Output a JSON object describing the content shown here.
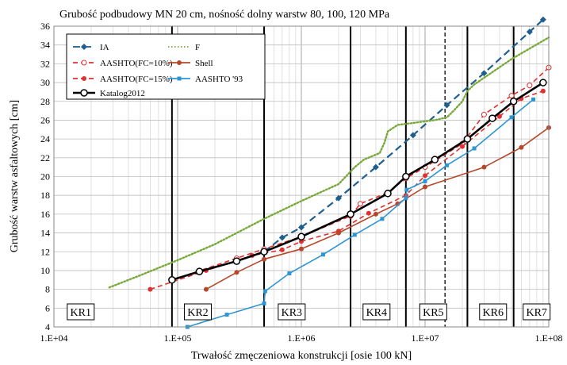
{
  "chart_data": {
    "type": "line",
    "title": "Grubość podbudowy MN 20 cm, nośność dolny warstw 80, 100, 120 MPa",
    "xlabel": "Trwałość zmęczeniowa konstrukcji [osie 100 kN]",
    "ylabel": "Grubość warstw asfaltowych [cm]",
    "x_scale": "log",
    "xlim": [
      10000,
      100000000
    ],
    "ylim": [
      4,
      36
    ],
    "x_ticks": [
      10000,
      100000,
      1000000,
      10000000,
      100000000
    ],
    "x_tick_labels": [
      "1.E+04",
      "1.E+05",
      "1.E+06",
      "1.E+07",
      "1.E+08"
    ],
    "y_ticks": [
      4,
      6,
      8,
      10,
      12,
      14,
      16,
      18,
      20,
      22,
      24,
      26,
      28,
      30,
      32,
      34,
      36
    ],
    "y_tick_labels": [
      "4",
      "6",
      "8",
      "10",
      "12",
      "14",
      "16",
      "18",
      "20",
      "22",
      "24",
      "26",
      "28",
      "30",
      "32",
      "34",
      "36"
    ],
    "grid": true,
    "legend_position": "top-left",
    "series": [
      {
        "name": "IA",
        "color": "#1F5F8F",
        "dash": "long-dash",
        "marker": "diamond",
        "points": [
          [
            500000,
            12
          ],
          [
            700000,
            13.5
          ],
          [
            1000000,
            14.6
          ],
          [
            2000000,
            17.7
          ],
          [
            4000000,
            21
          ],
          [
            8000000,
            24.4
          ],
          [
            15000000,
            27.6
          ],
          [
            30000000,
            31
          ],
          [
            70000000,
            35.4
          ],
          [
            90000000,
            36.7
          ]
        ]
      },
      {
        "name": "F",
        "color": "#77A83A",
        "dash": "dotted",
        "marker": "none",
        "points": [
          [
            28000,
            8.2
          ],
          [
            50000,
            9.5
          ],
          [
            100000,
            11.1
          ],
          [
            200000,
            12.8
          ],
          [
            500000,
            15.5
          ],
          [
            1000000,
            17.4
          ],
          [
            2000000,
            19.2
          ],
          [
            2700000,
            21
          ],
          [
            3200000,
            21.8
          ],
          [
            4300000,
            22.5
          ],
          [
            4700000,
            23.6
          ],
          [
            5000000,
            24.8
          ],
          [
            6000000,
            25.5
          ],
          [
            8000000,
            25.7
          ],
          [
            9000000,
            25.8
          ],
          [
            12000000,
            26
          ],
          [
            15000000,
            26.3
          ],
          [
            17000000,
            27
          ],
          [
            20000000,
            28
          ],
          [
            22000000,
            29.1
          ],
          [
            25000000,
            29.8
          ],
          [
            50000000,
            32.5
          ],
          [
            100000000,
            34.8
          ]
        ]
      },
      {
        "name": "AASHTO(FC=10%)",
        "color": "#E03030",
        "dash": "dashed",
        "marker": "open-circle",
        "points": [
          [
            90000,
            9
          ],
          [
            300000,
            11.3
          ],
          [
            500000,
            12.3
          ],
          [
            1000000,
            13.6
          ],
          [
            2500000,
            15.8
          ],
          [
            3000000,
            17.1
          ],
          [
            5000000,
            18.3
          ],
          [
            7000000,
            19.8
          ],
          [
            10000000,
            21
          ],
          [
            20000000,
            23.5
          ],
          [
            30000000,
            26.6
          ],
          [
            50000000,
            28.6
          ],
          [
            70000000,
            29.7
          ],
          [
            100000000,
            31.6
          ]
        ]
      },
      {
        "name": "AASHTO(FC=15%)",
        "color": "#E03030",
        "dash": "dashed",
        "marker": "filled-circle",
        "points": [
          [
            60000,
            8
          ],
          [
            170000,
            10
          ],
          [
            400000,
            11.6
          ],
          [
            700000,
            12.2
          ],
          [
            1000000,
            13.1
          ],
          [
            2000000,
            14.2
          ],
          [
            3500000,
            16.1
          ],
          [
            7000000,
            18
          ],
          [
            10000000,
            20.1
          ],
          [
            20000000,
            23.2
          ],
          [
            40000000,
            26.4
          ],
          [
            60000000,
            28.3
          ],
          [
            90000000,
            29.1
          ]
        ]
      },
      {
        "name": "Shell",
        "color": "#B5482A",
        "dash": "solid",
        "marker": "filled-circle",
        "points": [
          [
            170000,
            8
          ],
          [
            300000,
            9.8
          ],
          [
            500000,
            11.2
          ],
          [
            1000000,
            12.3
          ],
          [
            2000000,
            14
          ],
          [
            4000000,
            16
          ],
          [
            6000000,
            17.1
          ],
          [
            10000000,
            18.9
          ],
          [
            30000000,
            21
          ],
          [
            60000000,
            23.1
          ],
          [
            100000000,
            25.2
          ]
        ]
      },
      {
        "name": "AASHTO '93",
        "color": "#2E95D3",
        "dash": "solid",
        "marker": "square",
        "points": [
          [
            120000,
            4
          ],
          [
            250000,
            5.3
          ],
          [
            500000,
            6.5
          ],
          [
            510000,
            7.8
          ],
          [
            800000,
            9.7
          ],
          [
            1500000,
            11.7
          ],
          [
            2700000,
            13.8
          ],
          [
            4500000,
            15.5
          ],
          [
            7000000,
            17.7
          ],
          [
            7100000,
            18.6
          ],
          [
            10000000,
            19.5
          ],
          [
            15000000,
            21.2
          ],
          [
            25000000,
            23
          ],
          [
            50000000,
            26.3
          ],
          [
            75000000,
            28.2
          ]
        ]
      },
      {
        "name": "Katalog2012",
        "color": "#000000",
        "dash": "solid",
        "marker": "open-circle-large",
        "points": [
          [
            90000,
            9
          ],
          [
            150000,
            9.9
          ],
          [
            300000,
            11
          ],
          [
            500000,
            12
          ],
          [
            1000000,
            13.6
          ],
          [
            2500000,
            16
          ],
          [
            5000000,
            18.2
          ],
          [
            7000000,
            20
          ],
          [
            12000000,
            21.8
          ],
          [
            22000000,
            24
          ],
          [
            35000000,
            26.2
          ],
          [
            52000000,
            28
          ],
          [
            90000000,
            30
          ]
        ]
      }
    ],
    "zones": {
      "boundaries": [
        {
          "x": 90000,
          "style": "solid"
        },
        {
          "x": 500000,
          "style": "solid"
        },
        {
          "x": 2500000,
          "style": "solid"
        },
        {
          "x": 7000000,
          "style": "solid"
        },
        {
          "x": 14500000,
          "style": "dashed"
        },
        {
          "x": 22000000,
          "style": "solid"
        },
        {
          "x": 52000000,
          "style": "solid"
        }
      ],
      "labels": [
        {
          "text": "KR1",
          "x": 13000
        },
        {
          "text": "KR2",
          "x": 115000
        },
        {
          "text": "KR3",
          "x": 660000
        },
        {
          "text": "KR4",
          "x": 3200000
        },
        {
          "text": "KR5",
          "x": 9200000
        },
        {
          "text": "KR6",
          "x": 28000000
        },
        {
          "text": "KR7",
          "x": 63000000
        }
      ]
    }
  }
}
